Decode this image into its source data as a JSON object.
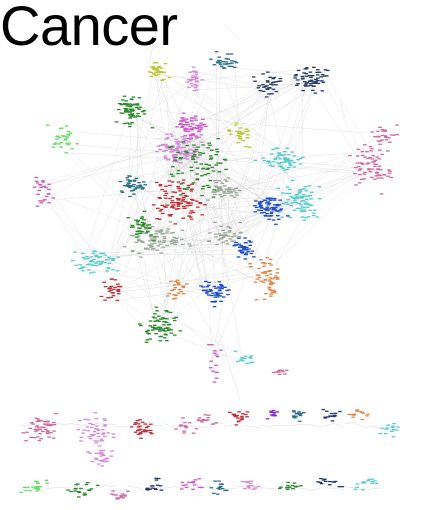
{
  "title": "Cancer",
  "palette": {
    "pink": "#d06aa0",
    "magenta": "#cc55cc",
    "orchid": "#d48ad8",
    "green": "#2a8a2a",
    "dark_green": "#1f6b1f",
    "light_green": "#66dd66",
    "cyan": "#55cccc",
    "teal": "#2a6f86",
    "blue": "#1e4ccc",
    "orange": "#e0894e",
    "red": "#c0303a",
    "gray": "#9aa89a",
    "navy": "#243a6a",
    "yellow_green": "#b8c830",
    "purple": "#8a2ad0",
    "edge": "#c8c8c8"
  }
}
